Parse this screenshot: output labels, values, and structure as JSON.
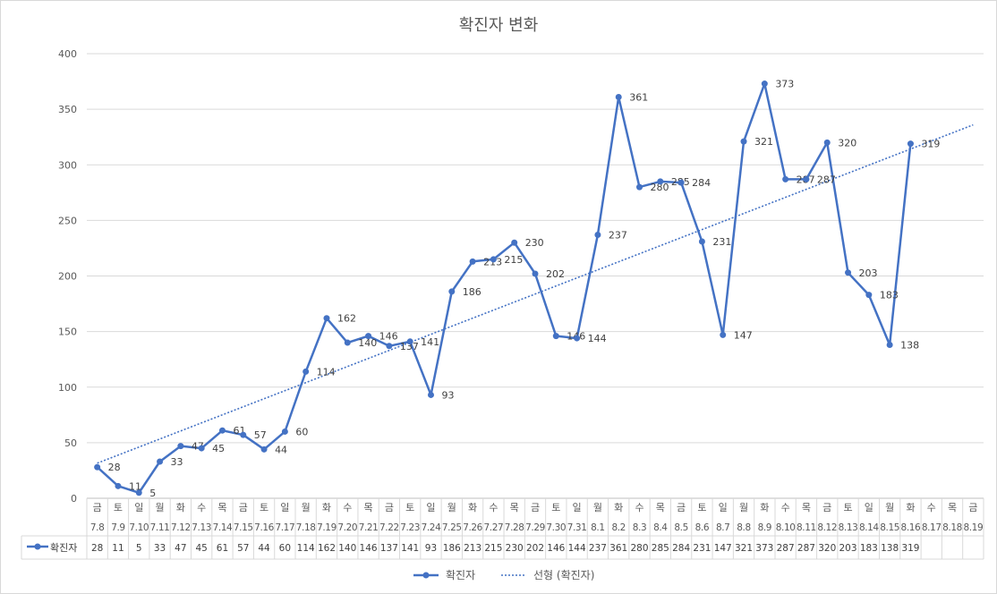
{
  "chart_data": {
    "type": "line",
    "title": "확진자 변화",
    "ylim": [
      0,
      400
    ],
    "yticks": [
      0,
      50,
      100,
      150,
      200,
      250,
      300,
      350,
      400
    ],
    "grid": true,
    "legend_placement": "bottom",
    "days": [
      "금",
      "토",
      "일",
      "월",
      "화",
      "수",
      "목",
      "금",
      "토",
      "일",
      "월",
      "화",
      "수",
      "목",
      "금",
      "토",
      "일",
      "월",
      "화",
      "수",
      "목",
      "금",
      "토",
      "일",
      "월",
      "화",
      "수",
      "목",
      "금",
      "토",
      "일",
      "월",
      "화",
      "수",
      "목",
      "금",
      "토",
      "일",
      "월",
      "화",
      "수",
      "목",
      "금"
    ],
    "dates": [
      "7.8",
      "7.9",
      "7.10",
      "7.11",
      "7.12",
      "7.13",
      "7.14",
      "7.15",
      "7.16",
      "7.17",
      "7.18",
      "7.19",
      "7.20",
      "7.21",
      "7.22",
      "7.23",
      "7.24",
      "7.25",
      "7.26",
      "7.27",
      "7.28",
      "7.29",
      "7.30",
      "7.31",
      "8.1",
      "8.2",
      "8.3",
      "8.4",
      "8.5",
      "8.6",
      "8.7",
      "8.8",
      "8.9",
      "8.10",
      "8.11",
      "8.12",
      "8.13",
      "8.14",
      "8.15",
      "8.16",
      "8.17",
      "8.18",
      "8.19"
    ],
    "series": [
      {
        "name": "확진자",
        "color": "#4472c4",
        "values": [
          28,
          11,
          5,
          33,
          47,
          45,
          61,
          57,
          44,
          60,
          114,
          162,
          140,
          146,
          137,
          141,
          93,
          186,
          213,
          215,
          230,
          202,
          146,
          144,
          237,
          361,
          280,
          285,
          284,
          231,
          147,
          321,
          373,
          287,
          287,
          320,
          203,
          183,
          138,
          319,
          null,
          null,
          null
        ]
      }
    ],
    "trendline": {
      "name": "선형 (확진자)",
      "color": "#4472c4"
    }
  }
}
